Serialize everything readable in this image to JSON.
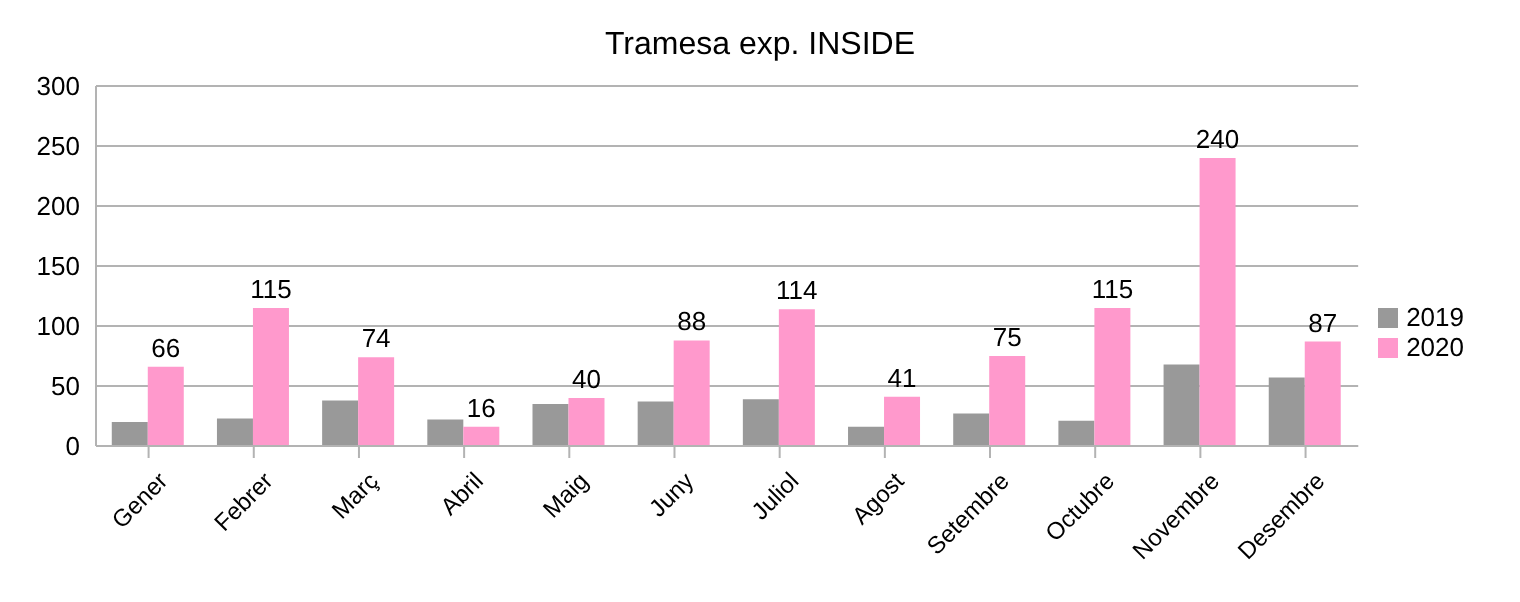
{
  "chart_data": {
    "type": "bar",
    "title": "Tramesa exp. INSIDE",
    "categories": [
      "Gener",
      "Febrer",
      "Març",
      "Abril",
      "Maig",
      "Juny",
      "Juliol",
      "Agost",
      "Setembre",
      "Octubre",
      "Novembre",
      "Desembre"
    ],
    "series": [
      {
        "name": "2019",
        "color": "#999999",
        "values": [
          20,
          23,
          38,
          22,
          35,
          37,
          39,
          16,
          27,
          21,
          68,
          57
        ]
      },
      {
        "name": "2020",
        "color": "#ff99cc",
        "values": [
          66,
          115,
          74,
          16,
          40,
          88,
          114,
          41,
          75,
          115,
          240,
          87
        ],
        "value_labels": [
          "66",
          "115",
          "74",
          "16",
          "40",
          "88",
          "114",
          "41",
          "75",
          "115",
          "240",
          "87"
        ]
      }
    ],
    "ylim": [
      0,
      300
    ],
    "yticks": [
      0,
      50,
      100,
      150,
      200,
      250,
      300
    ],
    "grid": "y",
    "legend": "right"
  }
}
